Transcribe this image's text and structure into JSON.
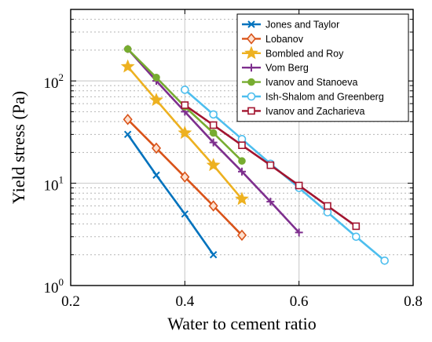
{
  "chart_data": {
    "type": "line",
    "xlabel": "Water to cement ratio",
    "ylabel": "Yield stress (Pa)",
    "xlim": [
      0.2,
      0.8
    ],
    "ylim": [
      1,
      500
    ],
    "yscale": "log",
    "x_ticks": [
      "0.2",
      "0.4",
      "0.6",
      "0.8"
    ],
    "y_ticks": [
      {
        "base": "10",
        "exp": "0"
      },
      {
        "base": "10",
        "exp": "1"
      },
      {
        "base": "10",
        "exp": "2"
      }
    ],
    "grid": true,
    "legend_position": "top-right",
    "series": [
      {
        "name": "Jones and Taylor",
        "color": "#0072BD",
        "marker": "x",
        "x": [
          0.3,
          0.35,
          0.4,
          0.45
        ],
        "y": [
          30,
          12,
          5,
          2
        ]
      },
      {
        "name": "Lobanov",
        "color": "#D95319",
        "marker": "diamond",
        "x": [
          0.3,
          0.35,
          0.4,
          0.45,
          0.5
        ],
        "y": [
          42,
          22,
          11.5,
          6,
          3.1
        ]
      },
      {
        "name": "Bombled and Roy",
        "color": "#EDB120",
        "marker": "star",
        "x": [
          0.3,
          0.35,
          0.4,
          0.45,
          0.5
        ],
        "y": [
          138,
          65,
          31,
          15,
          7
        ]
      },
      {
        "name": "Vom Berg",
        "color": "#7E2F8E",
        "marker": "plus",
        "x": [
          0.3,
          0.35,
          0.4,
          0.45,
          0.5,
          0.55,
          0.6
        ],
        "y": [
          205,
          100,
          50,
          25,
          13,
          6.6,
          3.3
        ]
      },
      {
        "name": "Ivanov and Stanoeva",
        "color": "#77AC30",
        "marker": "circle",
        "x": [
          0.3,
          0.35,
          0.4,
          0.45,
          0.5
        ],
        "y": [
          205,
          108,
          56,
          31,
          16.5
        ]
      },
      {
        "name": "Ish-Shalom and Greenberg",
        "color": "#4DBEEE",
        "marker": "circle-open",
        "x": [
          0.4,
          0.45,
          0.5,
          0.55,
          0.6,
          0.65,
          0.7,
          0.75
        ],
        "y": [
          82,
          47,
          27,
          15.5,
          9,
          5.2,
          3,
          1.75
        ]
      },
      {
        "name": "Ivanov and Zacharieva",
        "color": "#A2142F",
        "marker": "square",
        "x": [
          0.4,
          0.45,
          0.5,
          0.55,
          0.6,
          0.65,
          0.7
        ],
        "y": [
          58,
          37,
          23.5,
          15,
          9.5,
          6,
          3.8
        ]
      }
    ]
  }
}
